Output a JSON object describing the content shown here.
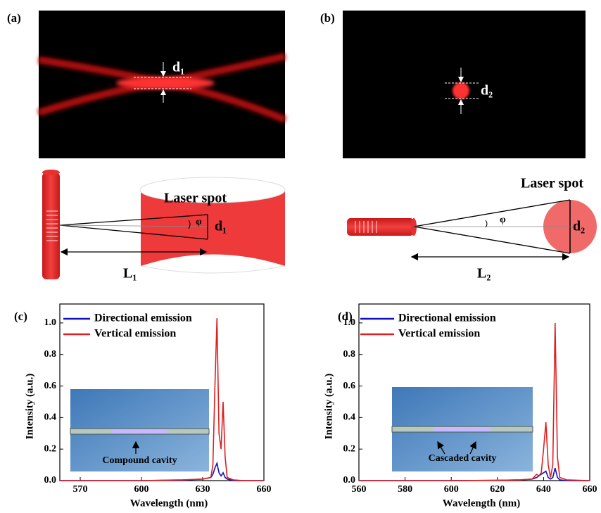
{
  "figure": {
    "panel_a": {
      "label": "(a)",
      "diameter": "d₁",
      "spot": "Laser spot",
      "spot_diameter": "d₁",
      "angle": "φ",
      "distance": "L₁"
    },
    "panel_b": {
      "label": "(b)",
      "diameter": "d₂",
      "spot": "Laser spot",
      "spot_diameter": "d₂",
      "angle": "φ",
      "distance": "L₂"
    }
  },
  "chart_data": [
    {
      "type": "line",
      "panel": "(c)",
      "xlabel": "Wavelength (nm)",
      "ylabel": "Intensity (a.u.)",
      "x": [
        560,
        600,
        620,
        630,
        634,
        635,
        636,
        637,
        638,
        639,
        640,
        641,
        642,
        645,
        650,
        660
      ],
      "series": [
        {
          "name": "Directional emission",
          "color": "#1010c0",
          "values": [
            0,
            0,
            0.003,
            0.01,
            0.02,
            0.04,
            0.08,
            0.11,
            0.05,
            0.03,
            0.05,
            0.02,
            0.01,
            0,
            0,
            0
          ]
        },
        {
          "name": "Vertical emission",
          "color": "#e02020",
          "values": [
            0,
            0,
            0.005,
            0.01,
            0.02,
            0.1,
            0.6,
            1.03,
            0.3,
            0.2,
            0.5,
            0.15,
            0.02,
            0.005,
            0,
            0
          ]
        }
      ],
      "xlim": [
        560,
        660
      ],
      "ylim": [
        0,
        1.12
      ],
      "xticks": [
        570,
        600,
        630,
        660
      ],
      "yticks": [
        {
          "value": 0,
          "label": "0.0"
        },
        0.2,
        0.4,
        0.6,
        0.8,
        {
          "value": 1,
          "label": "1.0"
        }
      ],
      "inset_label": "Compound cavity"
    },
    {
      "type": "line",
      "panel": "(d)",
      "xlabel": "Wavelength (nm)",
      "ylabel": "Intensity (a.u.)",
      "x": [
        560,
        600,
        620,
        630,
        635,
        637,
        638,
        639,
        640,
        641,
        642,
        643,
        644,
        645,
        646,
        647,
        650,
        660
      ],
      "series": [
        {
          "name": "Directional emission",
          "color": "#1010c0",
          "values": [
            0,
            0,
            0.002,
            0.005,
            0.01,
            0.02,
            0.03,
            0.04,
            0.05,
            0.06,
            0.02,
            0.01,
            0.02,
            0.08,
            0.02,
            0.005,
            0,
            0
          ]
        },
        {
          "name": "Vertical emission",
          "color": "#e02020",
          "values": [
            0,
            0,
            0.002,
            0.005,
            0.01,
            0.04,
            0.03,
            0.05,
            0.2,
            0.37,
            0.1,
            0.02,
            0.1,
            1.0,
            0.15,
            0.02,
            0.005,
            0
          ]
        }
      ],
      "xlim": [
        560,
        660
      ],
      "ylim": [
        0,
        1.12
      ],
      "xticks": [
        560,
        580,
        600,
        620,
        640,
        660
      ],
      "yticks": [
        {
          "value": 0,
          "label": "0.0"
        },
        0.2,
        0.4,
        0.6,
        0.8,
        {
          "value": 1,
          "label": "1.0"
        }
      ],
      "inset_label": "Cascaded cavity"
    }
  ]
}
